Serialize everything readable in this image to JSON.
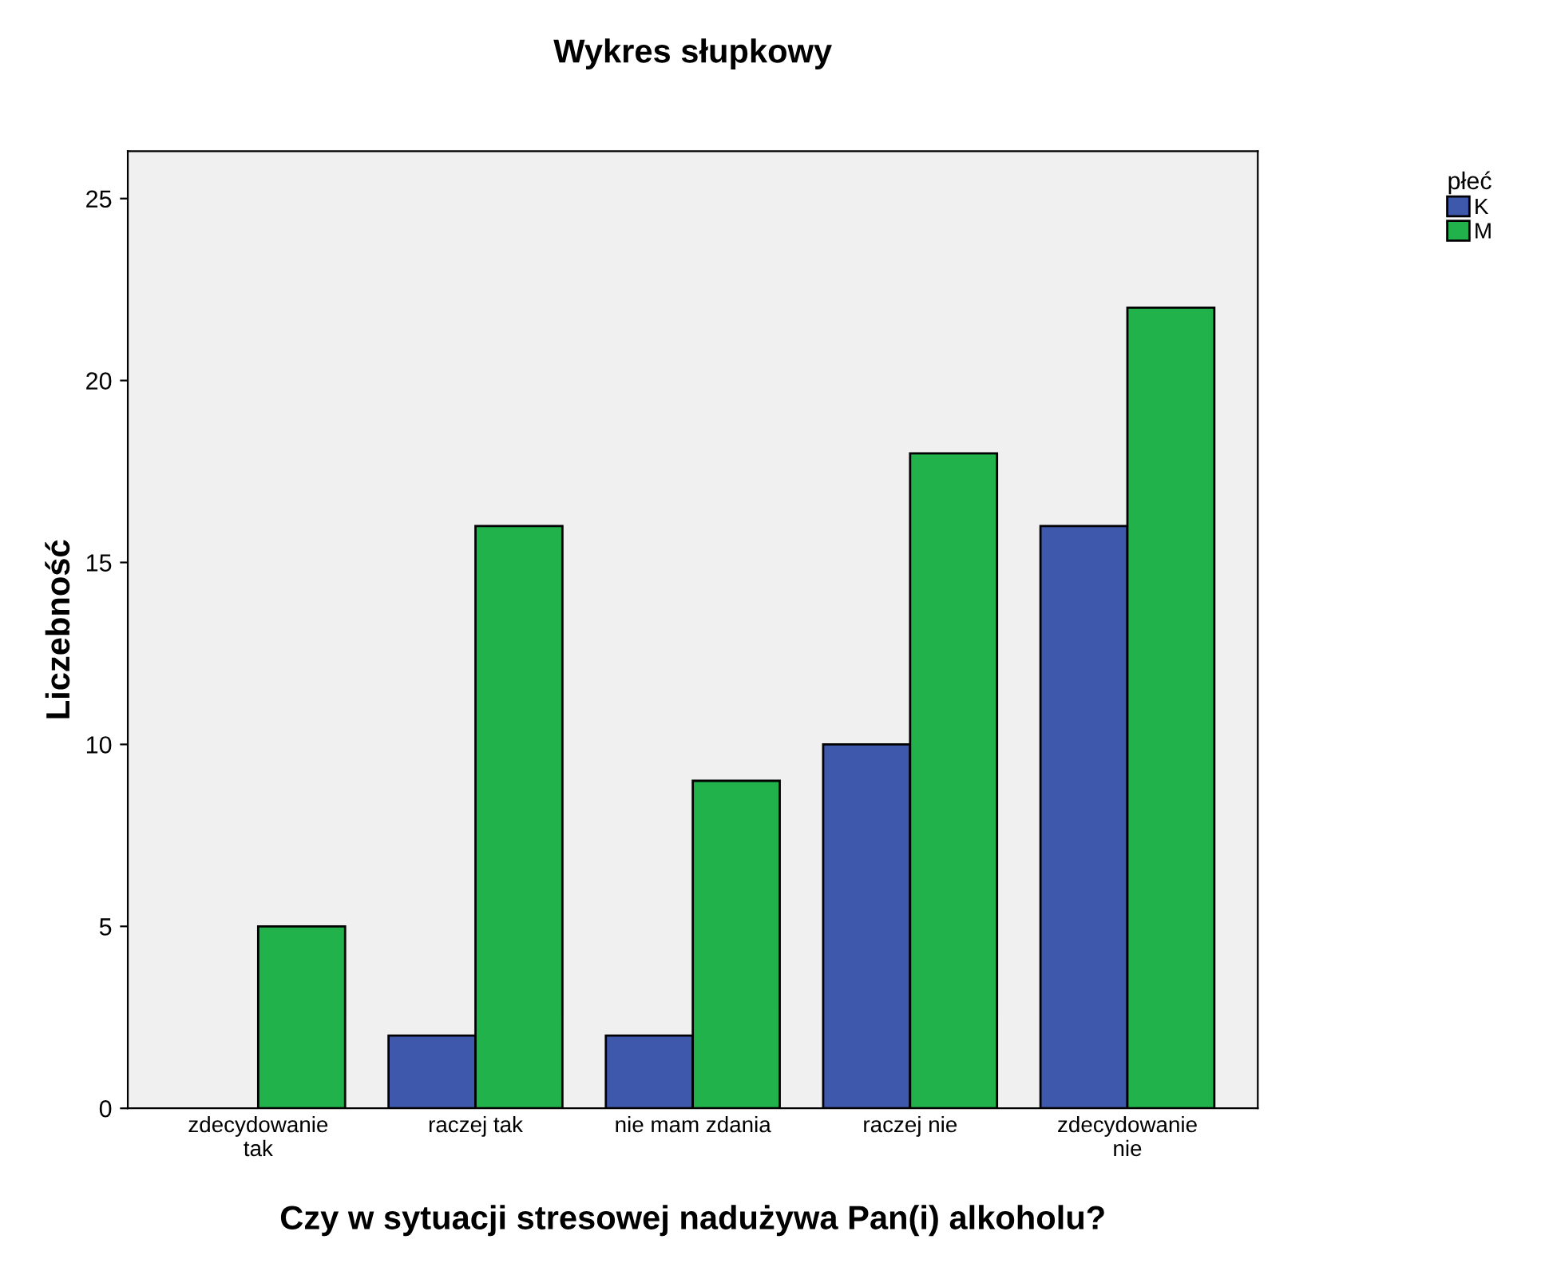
{
  "chart_data": {
    "type": "bar",
    "title": "Wykres słupkowy",
    "xlabel": "Czy w sytuacji stresowej nadużywa Pan(i) alkoholu?",
    "ylabel": "Liczebność",
    "legend_title": "płeć",
    "categories": [
      "zdecydowanie\ntak",
      "raczej tak",
      "nie mam zdania",
      "raczej nie",
      "zdecydowanie\nnie"
    ],
    "series": [
      {
        "name": "K",
        "color": "#3e58ac",
        "values": [
          null,
          2,
          2,
          10,
          16
        ]
      },
      {
        "name": "M",
        "color": "#21b24b",
        "values": [
          5,
          16,
          9,
          18,
          22
        ]
      }
    ],
    "ylim": [
      0,
      26.3
    ],
    "yticks": [
      0,
      5,
      10,
      15,
      20,
      25
    ],
    "grid": false,
    "legend": "top right"
  }
}
